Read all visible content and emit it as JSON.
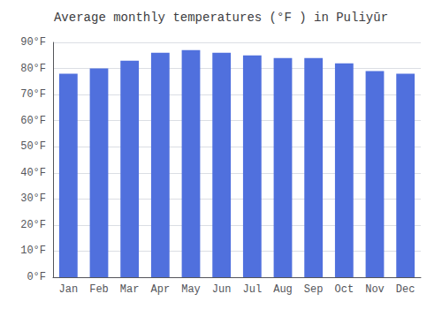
{
  "chart_data": {
    "type": "bar",
    "title": "Average monthly temperatures (°F ) in Puliyūr",
    "categories": [
      "Jan",
      "Feb",
      "Mar",
      "Apr",
      "May",
      "Jun",
      "Jul",
      "Aug",
      "Sep",
      "Oct",
      "Nov",
      "Dec"
    ],
    "values": [
      78,
      80,
      83,
      86,
      87,
      86,
      85,
      84,
      84,
      82,
      79,
      78
    ],
    "ylim": [
      0,
      90
    ],
    "yticks": [
      {
        "value": 0,
        "label": "0°F"
      },
      {
        "value": 10,
        "label": "10°F"
      },
      {
        "value": 20,
        "label": "20°F"
      },
      {
        "value": 30,
        "label": "30°F"
      },
      {
        "value": 40,
        "label": "40°F"
      },
      {
        "value": 50,
        "label": "50°F"
      },
      {
        "value": 60,
        "label": "60°F"
      },
      {
        "value": 70,
        "label": "70°F"
      },
      {
        "value": 80,
        "label": "80°F"
      },
      {
        "value": 90,
        "label": "90°F"
      }
    ],
    "grid": true
  }
}
